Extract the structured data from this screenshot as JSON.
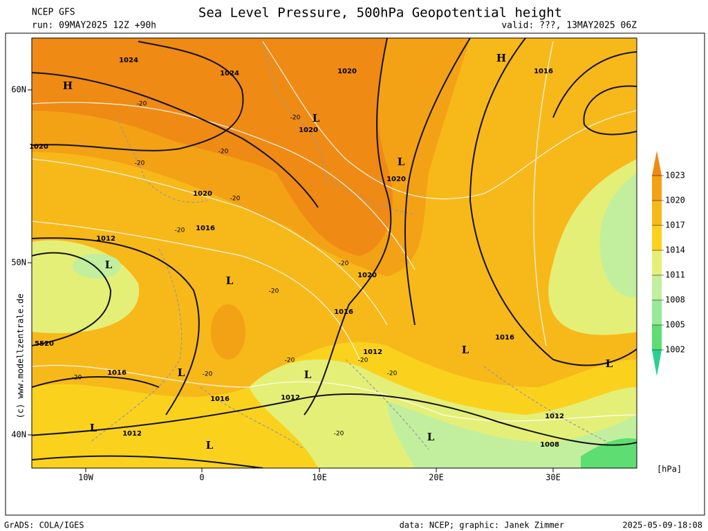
{
  "header": {
    "model": "NCEP GFS",
    "run": "run: 09MAY2025 12Z +90h",
    "title": "Sea Level Pressure, 500hPa Geopotential height",
    "valid": "valid: ???, 13MAY2025 06Z"
  },
  "axes": {
    "lat_labels": [
      "60N",
      "50N",
      "40N"
    ],
    "lon_labels": [
      "10W",
      "0",
      "10E",
      "20E",
      "30E"
    ]
  },
  "map_labels": {
    "pressure_centers": [
      "H",
      "H",
      "L",
      "L",
      "L",
      "L",
      "L",
      "L",
      "L",
      "L",
      "L",
      "L",
      "L"
    ],
    "isobar_labels": [
      "1024",
      "1024",
      "1020",
      "1016",
      "1020",
      "1020",
      "1020",
      "1020",
      "1016",
      "1012",
      "1020",
      "1016",
      "1012",
      "1016",
      "1012",
      "1016",
      "1012",
      "1012",
      "1008",
      "1016",
      "5520"
    ],
    "height_labels": [
      "-20",
      "-20",
      "-20",
      "-20",
      "-20",
      "-20",
      "-20",
      "-20",
      "-20",
      "-20",
      "-20",
      "-20",
      "-20",
      "-20"
    ]
  },
  "colorbar": {
    "levels": [
      1023,
      1020,
      1017,
      1014,
      1011,
      1008,
      1005,
      1002
    ],
    "colors": [
      "#ef8a14",
      "#f3a115",
      "#f7b81a",
      "#fad21e",
      "#e4ef78",
      "#c2ef9e",
      "#98e99a",
      "#5ede72",
      "#27d190"
    ],
    "unit": "[hPa]"
  },
  "credits": {
    "copyright": "(c) www.modellzentrale.de",
    "software": "GrADS: COLA/IGES",
    "source": "data: NCEP; graphic: Janek Zimmer",
    "timestamp": "2025-05-09-18:08"
  }
}
